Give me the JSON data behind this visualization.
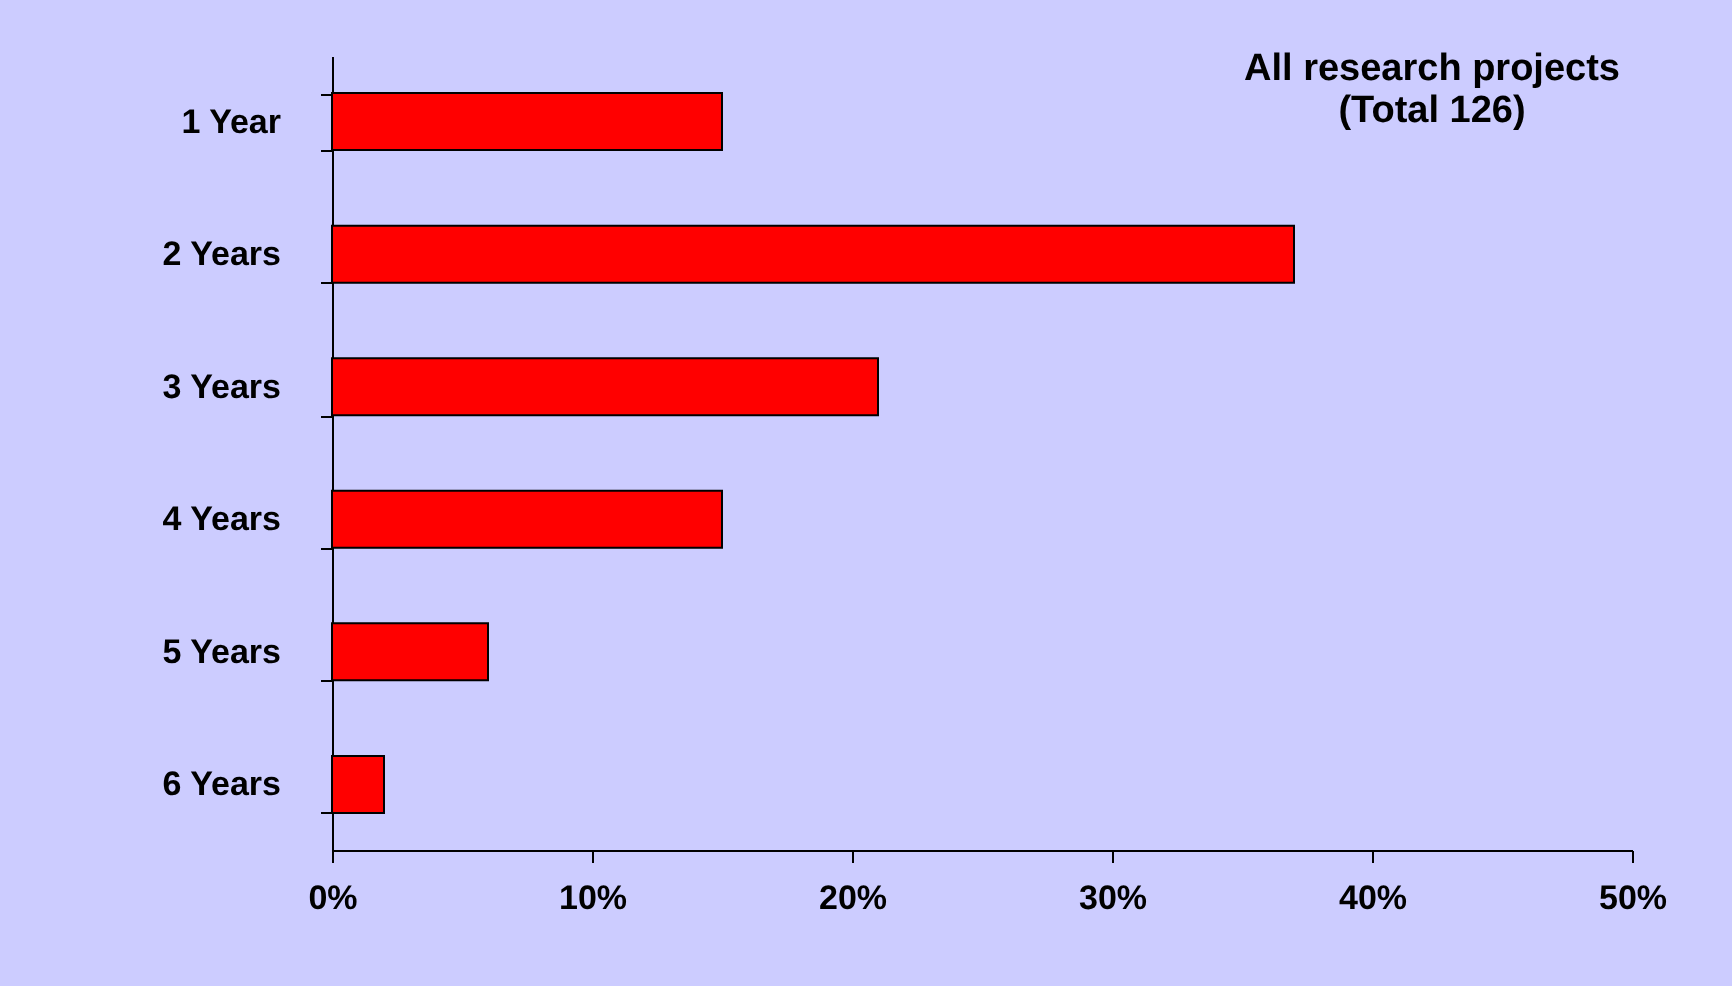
{
  "chart_data": {
    "type": "bar",
    "orientation": "horizontal",
    "title": "All research projects\n(Total 126)",
    "categories": [
      "1 Year",
      "2 Years",
      "3 Years",
      "4 Years",
      "5 Years",
      "6 Years"
    ],
    "values": [
      15,
      37,
      21,
      15,
      6,
      2
    ],
    "color": "#ff0000",
    "xlim": [
      0,
      50
    ],
    "xticks": [
      {
        "value": 0,
        "label": "0%"
      },
      {
        "value": 10,
        "label": "10%"
      },
      {
        "value": 20,
        "label": "20%"
      },
      {
        "value": 30,
        "label": "30%"
      },
      {
        "value": 40,
        "label": "40%"
      },
      {
        "value": 50,
        "label": "50%"
      }
    ],
    "grid": false
  }
}
